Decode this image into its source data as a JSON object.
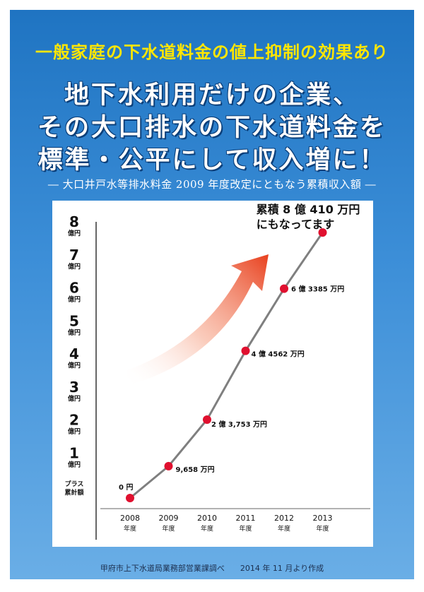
{
  "header": {
    "subtitle": "一般家庭の下水道料金の値上抑制の効果あり",
    "title_lines": [
      "地下水利用だけの企業、",
      "その大口排水の下水道料金を",
      "標準・公平にして収入増に！"
    ],
    "caption": "― 大口井戸水等排水料金 2009 年度改定にともなう累積収入額 ―"
  },
  "chart_data": {
    "type": "line",
    "title": "",
    "x": [
      "2008",
      "2009",
      "2010",
      "2011",
      "2012",
      "2013"
    ],
    "x_suffix": "年度",
    "values": [
      0,
      0.9658,
      2.3753,
      4.4562,
      6.3385,
      8.041
    ],
    "point_labels": [
      "0 円",
      "9,658 万円",
      "2 億 3,753 万円",
      "4 億 4562 万円",
      "6 億 3385 万円",
      ""
    ],
    "callout": [
      "累積 8 億 410 万円",
      "にもなってます"
    ],
    "y_ticks": [
      "1",
      "2",
      "3",
      "4",
      "5",
      "6",
      "7",
      "8"
    ],
    "y_tick_unit": "億円",
    "y_base_label": [
      "プラス",
      "累計額"
    ],
    "ylim": [
      0,
      8
    ],
    "grid": false,
    "line_color": "#7f7f7f",
    "marker_color": "#e0102f"
  },
  "footer": {
    "source": "甲府市上下水道局業務部営業課調べ　　2014 年 11 月より作成"
  }
}
